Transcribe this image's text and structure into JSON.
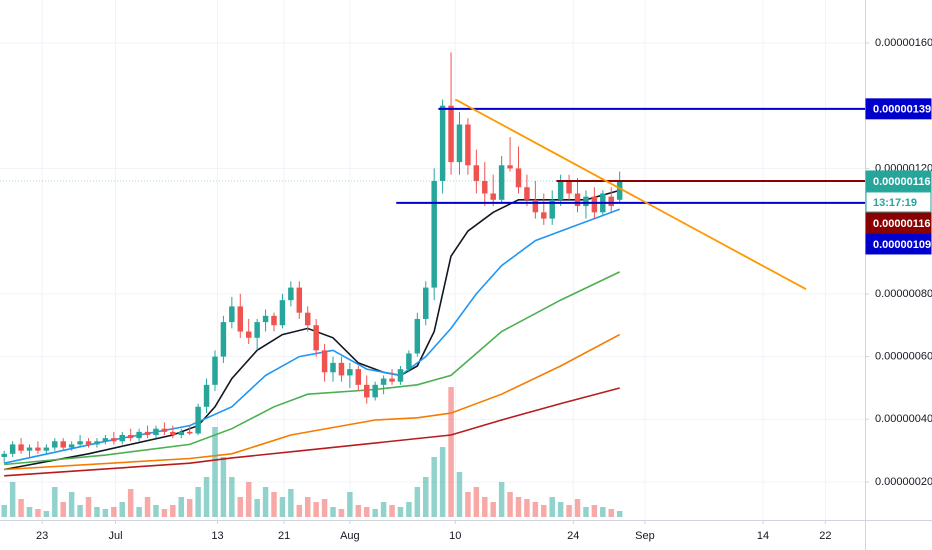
{
  "chart_data": {
    "type": "candlestick",
    "x": [
      0,
      1,
      2,
      3,
      4,
      5,
      6,
      7,
      8,
      9,
      10,
      11,
      12,
      13,
      14,
      15,
      16,
      17,
      18,
      19,
      20,
      21,
      22,
      23,
      24,
      25,
      26,
      27,
      28,
      29,
      30,
      31,
      32,
      33,
      34,
      35,
      36,
      37,
      38,
      39,
      40,
      41,
      42,
      43,
      44,
      45,
      46,
      47,
      48,
      49,
      50,
      51,
      52,
      53,
      54,
      55,
      56,
      57,
      58,
      59,
      60,
      61,
      62,
      63,
      64,
      65,
      66,
      67,
      68,
      69,
      70,
      71,
      72,
      73
    ],
    "open": [
      2.8e-07,
      2.9e-07,
      3.2e-07,
      3e-07,
      3.1e-07,
      3e-07,
      3.1e-07,
      3.3e-07,
      3.1e-07,
      3.2e-07,
      3.3e-07,
      3.2e-07,
      3.3e-07,
      3.4e-07,
      3.3e-07,
      3.5e-07,
      3.4e-07,
      3.6e-07,
      3.5e-07,
      3.7e-07,
      3.6e-07,
      3.5e-07,
      3.6e-07,
      3.55e-07,
      4.4e-07,
      5.1e-07,
      6e-07,
      7.1e-07,
      7.6e-07,
      6.8e-07,
      6.6e-07,
      7.1e-07,
      7.3e-07,
      7e-07,
      7.8e-07,
      8.2e-07,
      7.4e-07,
      7e-07,
      6.2e-07,
      5.5e-07,
      5.8e-07,
      5.4e-07,
      5.6e-07,
      5.1e-07,
      4.7e-07,
      5.1e-07,
      5.3e-07,
      5.2e-07,
      5.6e-07,
      6.1e-07,
      7.2e-07,
      8.2e-07,
      1.16e-06,
      1.4e-06,
      1.22e-06,
      1.34e-06,
      1.21e-06,
      1.16e-06,
      1.12e-06,
      1.1e-06,
      1.21e-06,
      1.2e-06,
      1.14e-06,
      1.1e-06,
      1.06e-06,
      1.04e-06,
      1.1e-06,
      1.16e-06,
      1.12e-06,
      1.08e-06,
      1.11e-06,
      1.06e-06,
      1.11e-06,
      1.1e-06
    ],
    "high": [
      3e-07,
      3.3e-07,
      3.4e-07,
      3.2e-07,
      3.3e-07,
      3.2e-07,
      3.4e-07,
      3.4e-07,
      3.3e-07,
      3.5e-07,
      3.4e-07,
      3.4e-07,
      3.5e-07,
      3.6e-07,
      3.6e-07,
      3.7e-07,
      3.7e-07,
      3.8e-07,
      3.8e-07,
      3.9e-07,
      3.8e-07,
      3.7e-07,
      3.8e-07,
      4.5e-07,
      5.3e-07,
      6.2e-07,
      7.3e-07,
      7.9e-07,
      8e-07,
      7.2e-07,
      7.2e-07,
      7.5e-07,
      7.4e-07,
      8e-07,
      8.4e-07,
      8.4e-07,
      7.6e-07,
      7.2e-07,
      6.4e-07,
      6e-07,
      6e-07,
      5.8e-07,
      5.7e-07,
      5.4e-07,
      5.2e-07,
      5.4e-07,
      5.6e-07,
      5.7e-07,
      6.2e-07,
      7.4e-07,
      8.4e-07,
      1.2e-06,
      1.42e-06,
      1.57e-06,
      1.38e-06,
      1.36e-06,
      1.26e-06,
      1.22e-06,
      1.18e-06,
      1.24e-06,
      1.3e-06,
      1.27e-06,
      1.18e-06,
      1.16e-06,
      1.12e-06,
      1.13e-06,
      1.18e-06,
      1.18e-06,
      1.17e-06,
      1.13e-06,
      1.14e-06,
      1.13e-06,
      1.14e-06,
      1.19e-06
    ],
    "low": [
      2.6e-07,
      2.8e-07,
      2.9e-07,
      2.8e-07,
      2.9e-07,
      2.9e-07,
      3e-07,
      3e-07,
      3e-07,
      3.1e-07,
      3.1e-07,
      3.1e-07,
      3.2e-07,
      3.2e-07,
      3.2e-07,
      3.3e-07,
      3.3e-07,
      3.4e-07,
      3.4e-07,
      3.5e-07,
      3.4e-07,
      3.4e-07,
      3.5e-07,
      3.5e-07,
      4.2e-07,
      4.9e-07,
      5.8e-07,
      6.9e-07,
      6.6e-07,
      6.4e-07,
      6.2e-07,
      6.8e-07,
      6.8e-07,
      6.9e-07,
      7.6e-07,
      7.2e-07,
      6.8e-07,
      6e-07,
      5.2e-07,
      5.2e-07,
      5.2e-07,
      5e-07,
      4.9e-07,
      4.5e-07,
      4.6e-07,
      4.8e-07,
      5.1e-07,
      5.1e-07,
      5.5e-07,
      6e-07,
      7e-07,
      7.8e-07,
      1.12e-06,
      1.18e-06,
      1.18e-06,
      1.18e-06,
      1.12e-06,
      1.08e-06,
      1.08e-06,
      1.09e-06,
      1.19e-06,
      1.12e-06,
      1.08e-06,
      1.04e-06,
      1.02e-06,
      1.02e-06,
      1.08e-06,
      1.1e-06,
      1.06e-06,
      1.04e-06,
      1.04e-06,
      1.05e-06,
      1.06e-06,
      1.09e-06
    ],
    "close": [
      2.9e-07,
      3.2e-07,
      3e-07,
      3.1e-07,
      3e-07,
      3.1e-07,
      3.3e-07,
      3.1e-07,
      3.2e-07,
      3.3e-07,
      3.2e-07,
      3.3e-07,
      3.4e-07,
      3.3e-07,
      3.5e-07,
      3.4e-07,
      3.6e-07,
      3.5e-07,
      3.7e-07,
      3.6e-07,
      3.5e-07,
      3.6e-07,
      3.55e-07,
      4.4e-07,
      5.1e-07,
      6e-07,
      7.1e-07,
      7.6e-07,
      6.8e-07,
      6.6e-07,
      7.1e-07,
      7.3e-07,
      7e-07,
      7.8e-07,
      8.2e-07,
      7.4e-07,
      7e-07,
      6.2e-07,
      5.5e-07,
      5.8e-07,
      5.4e-07,
      5.6e-07,
      5.1e-07,
      4.7e-07,
      5.1e-07,
      5.3e-07,
      5.2e-07,
      5.6e-07,
      6.1e-07,
      7.2e-07,
      8.2e-07,
      1.16e-06,
      1.4e-06,
      1.22e-06,
      1.34e-06,
      1.21e-06,
      1.16e-06,
      1.12e-06,
      1.1e-06,
      1.21e-06,
      1.2e-06,
      1.14e-06,
      1.1e-06,
      1.06e-06,
      1.04e-06,
      1.1e-06,
      1.16e-06,
      1.12e-06,
      1.08e-06,
      1.11e-06,
      1.06e-06,
      1.12e-06,
      1.08e-06,
      1.16e-06
    ],
    "volume": [
      12,
      35,
      18,
      10,
      8,
      6,
      30,
      15,
      25,
      12,
      20,
      10,
      8,
      10,
      15,
      28,
      10,
      20,
      12,
      8,
      12,
      20,
      18,
      30,
      40,
      90,
      60,
      40,
      20,
      35,
      18,
      30,
      25,
      20,
      28,
      12,
      20,
      15,
      18,
      10,
      8,
      25,
      12,
      10,
      8,
      15,
      12,
      10,
      15,
      30,
      40,
      60,
      70,
      130,
      45,
      25,
      30,
      20,
      15,
      35,
      25,
      20,
      18,
      15,
      12,
      20,
      15,
      12,
      18,
      10,
      12,
      10,
      8,
      6
    ],
    "volume_lim": [
      0,
      420
    ],
    "up_color": "#26a69a",
    "down_color": "#ef5350",
    "moving_averages": [
      {
        "color": "#131722",
        "x": [
          0,
          10,
          20,
          23,
          25,
          27,
          30,
          33,
          36,
          39,
          42,
          45,
          47,
          49,
          51,
          53,
          55,
          58,
          61,
          65,
          69,
          73
        ],
        "values": [
          2.4e-07,
          2.9e-07,
          3.5e-07,
          3.8e-07,
          4.4e-07,
          5.3e-07,
          6.2e-07,
          6.7e-07,
          6.9e-07,
          6.6e-07,
          5.8e-07,
          5.5e-07,
          5.4e-07,
          5.7e-07,
          6.8e-07,
          9.2e-07,
          1e-06,
          1.06e-06,
          1.1e-06,
          1.1e-06,
          1.1e-06,
          1.13e-06
        ]
      },
      {
        "color": "#2196f3",
        "x": [
          0,
          12,
          22,
          27,
          31,
          35,
          39,
          43,
          47,
          50,
          53,
          56,
          59,
          63,
          67,
          70,
          73
        ],
        "values": [
          2.6e-07,
          3.3e-07,
          3.8e-07,
          4.4e-07,
          5.4e-07,
          6e-07,
          6.2e-07,
          5.6e-07,
          5.4e-07,
          6e-07,
          6.9e-07,
          8e-07,
          8.9e-07,
          9.7e-07,
          1.01e-06,
          1.04e-06,
          1.07e-06
        ]
      },
      {
        "color": "#4caf50",
        "x": [
          0,
          12,
          22,
          27,
          32,
          36,
          44,
          49,
          53,
          59,
          66,
          73
        ],
        "values": [
          2.56e-07,
          2.86e-07,
          3.2e-07,
          3.7e-07,
          4.4e-07,
          4.8e-07,
          4.95e-07,
          5.1e-07,
          5.4e-07,
          6.8e-07,
          7.8e-07,
          8.7e-07
        ]
      },
      {
        "color": "#f57c00",
        "x": [
          0,
          22,
          27,
          34,
          44,
          49,
          53,
          59,
          66,
          73
        ],
        "values": [
          2.4e-07,
          2.75e-07,
          2.9e-07,
          3.5e-07,
          3.98e-07,
          4.05e-07,
          4.2e-07,
          4.8e-07,
          5.7e-07,
          6.7e-07
        ]
      },
      {
        "color": "#b71c1c",
        "x": [
          0,
          22,
          27,
          36,
          53,
          59,
          66,
          73
        ],
        "values": [
          2.2e-07,
          2.6e-07,
          2.77e-07,
          3.02e-07,
          3.5e-07,
          3.98e-07,
          4.5e-07,
          5e-07
        ]
      }
    ],
    "horizontal_lines": [
      {
        "value": 1.39e-06,
        "label": "0.00000139",
        "color": "#0000cc",
        "x_start": 51.5
      },
      {
        "value": 1.16e-06,
        "label": "0.00000116",
        "color": "#8b0000",
        "x_start": 65.5
      },
      {
        "value": 1.09e-06,
        "label": "0.00000109",
        "color": "#0000cc",
        "x_start": 46.5
      }
    ],
    "trendline": {
      "color": "#ff9800",
      "x": [
        53.5,
        95.1
      ],
      "values": [
        1.42e-06,
        8.15e-07
      ]
    },
    "last_price": {
      "value": 1.16e-06,
      "label": "0.00000116",
      "color": "#26a69a"
    },
    "countdown": "13:17:19",
    "xlim": [
      -0.5,
      102.1
    ],
    "ylim": [
      7.9e-08,
      1.737e-06
    ],
    "xticks": [
      {
        "value": 4.5,
        "label": "23"
      },
      {
        "value": 13.2,
        "label": "Jul"
      },
      {
        "value": 25.3,
        "label": "13"
      },
      {
        "value": 33.2,
        "label": "21"
      },
      {
        "value": 41.0,
        "label": "Aug"
      },
      {
        "value": 53.5,
        "label": "10"
      },
      {
        "value": 67.5,
        "label": "24"
      },
      {
        "value": 76.0,
        "label": "Sep"
      },
      {
        "value": 90.0,
        "label": "14"
      },
      {
        "value": 97.4,
        "label": "22"
      }
    ],
    "yticks": [
      {
        "value": 1.6e-06,
        "label": "0.00000160"
      },
      {
        "value": 1.2e-06,
        "label": "0.00000120"
      },
      {
        "value": 8e-07,
        "label": "0.00000080"
      },
      {
        "value": 6e-07,
        "label": "0.00000060"
      },
      {
        "value": 4e-07,
        "label": "0.00000040"
      },
      {
        "value": 2e-07,
        "label": "0.00000020"
      }
    ],
    "grid": true
  }
}
